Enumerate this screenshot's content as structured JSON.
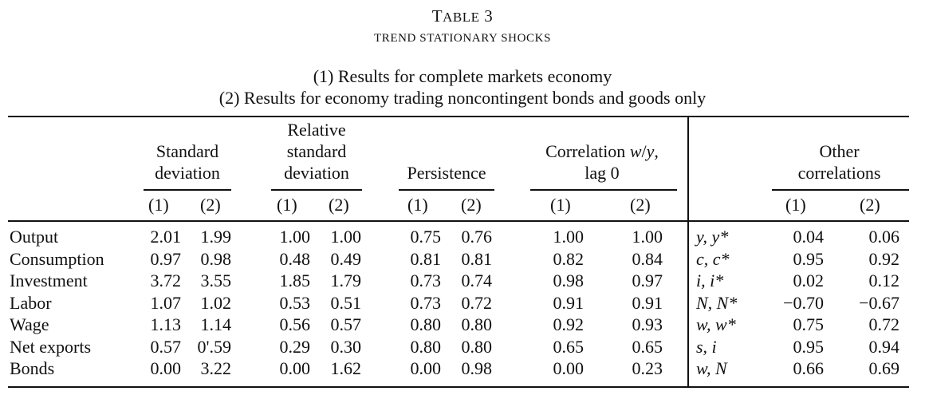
{
  "table": {
    "title": "Table 3",
    "subtitle": "TREND STATIONARY SHOCKS",
    "notes": [
      "(1) Results for complete markets economy",
      "(2) Results for economy trading noncontingent bonds and goods only"
    ],
    "column_groups": [
      {
        "label_lines": [
          "Standard",
          "deviation"
        ]
      },
      {
        "label_lines": [
          "Relative",
          "standard",
          "deviation"
        ]
      },
      {
        "label_lines": [
          "Persistence"
        ]
      },
      {
        "label_lines": [
          "Correlation w/y,",
          "lag 0"
        ]
      },
      {
        "label_lines": [
          "Other",
          "correlations"
        ]
      }
    ],
    "subcols": [
      "(1)",
      "(2)"
    ],
    "rows": [
      {
        "label": "Output",
        "sd": [
          "2.01",
          "1.99"
        ],
        "rsd": [
          "1.00",
          "1.00"
        ],
        "pers": [
          "0.75",
          "0.76"
        ],
        "corr": [
          "1.00",
          "1.00"
        ],
        "other_var": "y, y*",
        "other": [
          "0.04",
          "0.06"
        ]
      },
      {
        "label": "Consumption",
        "sd": [
          "0.97",
          "0.98"
        ],
        "rsd": [
          "0.48",
          "0.49"
        ],
        "pers": [
          "0.81",
          "0.81"
        ],
        "corr": [
          "0.82",
          "0.84"
        ],
        "other_var": "c, c*",
        "other": [
          "0.95",
          "0.92"
        ]
      },
      {
        "label": "Investment",
        "sd": [
          "3.72",
          "3.55"
        ],
        "rsd": [
          "1.85",
          "1.79"
        ],
        "pers": [
          "0.73",
          "0.74"
        ],
        "corr": [
          "0.98",
          "0.97"
        ],
        "other_var": "i, i*",
        "other": [
          "0.02",
          "0.12"
        ]
      },
      {
        "label": "Labor",
        "sd": [
          "1.07",
          "1.02"
        ],
        "rsd": [
          "0.53",
          "0.51"
        ],
        "pers": [
          "0.73",
          "0.72"
        ],
        "corr": [
          "0.91",
          "0.91"
        ],
        "other_var": "N, N*",
        "other": [
          "−0.70",
          "−0.67"
        ]
      },
      {
        "label": "Wage",
        "sd": [
          "1.13",
          "1.14"
        ],
        "rsd": [
          "0.56",
          "0.57"
        ],
        "pers": [
          "0.80",
          "0.80"
        ],
        "corr": [
          "0.92",
          "0.93"
        ],
        "other_var": "w, w*",
        "other": [
          "0.75",
          "0.72"
        ]
      },
      {
        "label": "Net exports",
        "sd": [
          "0.57",
          "0'.59"
        ],
        "rsd": [
          "0.29",
          "0.30"
        ],
        "pers": [
          "0.80",
          "0.80"
        ],
        "corr": [
          "0.65",
          "0.65"
        ],
        "other_var": "s, i",
        "other": [
          "0.95",
          "0.94"
        ]
      },
      {
        "label": "Bonds",
        "sd": [
          "0.00",
          "3.22"
        ],
        "rsd": [
          "0.00",
          "1.62"
        ],
        "pers": [
          "0.00",
          "0.98"
        ],
        "corr": [
          "0.00",
          "0.23"
        ],
        "other_var": "w, N",
        "other": [
          "0.66",
          "0.69"
        ]
      }
    ]
  }
}
